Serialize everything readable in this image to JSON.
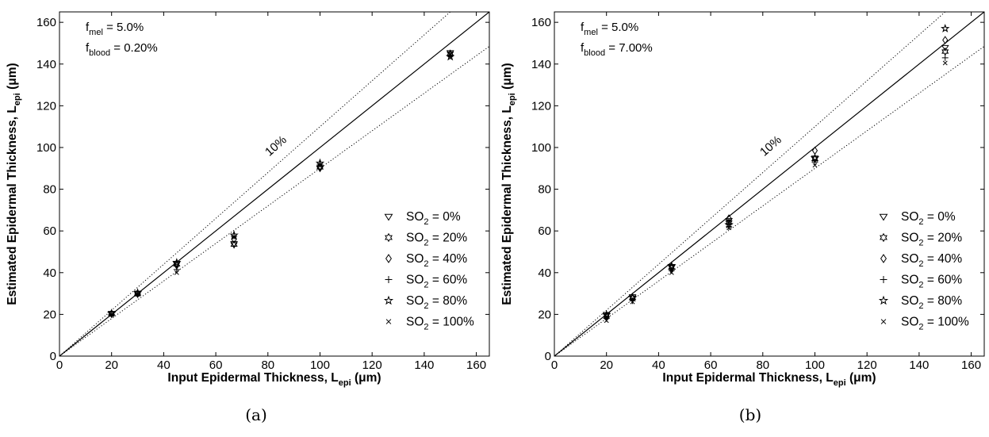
{
  "chart_data": [
    {
      "type": "scatter",
      "panel_label": "(a)",
      "xlabel": {
        "main": "Input Epidermal Thickness, L",
        "sub": "epi",
        "post": " (μm)"
      },
      "ylabel": {
        "main": "Estimated Epidermal Thickness, L",
        "sub": "epi",
        "post": " (μm)"
      },
      "xlim": [
        0,
        165
      ],
      "ylim": [
        0,
        165
      ],
      "xticks": [
        0,
        20,
        40,
        60,
        80,
        100,
        120,
        140,
        160
      ],
      "yticks": [
        0,
        20,
        40,
        60,
        80,
        100,
        120,
        140,
        160
      ],
      "grid": false,
      "legend_position": "lower-right",
      "params": [
        {
          "main": "f",
          "sub": "mel",
          "post": " = 5.0%"
        },
        {
          "main": "f",
          "sub": "blood",
          "post": " = 0.20%"
        }
      ],
      "reference_line": {
        "label": "10%",
        "tolerance": 0.1
      },
      "series": [
        {
          "name": "SO2 = 0%",
          "marker": "triangle-down-icon",
          "x": [
            20,
            30,
            45,
            67,
            100,
            150
          ],
          "y": [
            20.5,
            30.2,
            44.5,
            54,
            90,
            145.5
          ]
        },
        {
          "name": "SO2 = 20%",
          "marker": "hexagram-icon",
          "x": [
            20,
            30,
            45,
            67,
            100,
            150
          ],
          "y": [
            20.3,
            30,
            44,
            53.5,
            90.5,
            145
          ]
        },
        {
          "name": "SO2 = 40%",
          "marker": "diamond-icon",
          "x": [
            20,
            30,
            45,
            67,
            100,
            150
          ],
          "y": [
            20.2,
            29.8,
            43.5,
            56,
            91,
            144.5
          ]
        },
        {
          "name": "SO2 = 60%",
          "marker": "plus-icon",
          "x": [
            20,
            30,
            45,
            67,
            100,
            150
          ],
          "y": [
            20,
            30,
            41.5,
            57.5,
            92,
            144
          ]
        },
        {
          "name": "SO2 = 80%",
          "marker": "pentagram-icon",
          "x": [
            20,
            30,
            45,
            67,
            100,
            150
          ],
          "y": [
            20.5,
            30.3,
            44.8,
            58,
            92.5,
            143.5
          ]
        },
        {
          "name": "SO2 = 100%",
          "marker": "cross-icon",
          "x": [
            20,
            30,
            45,
            67,
            100,
            150
          ],
          "y": [
            20,
            29.7,
            40,
            57,
            91.5,
            144.5
          ]
        }
      ]
    },
    {
      "type": "scatter",
      "panel_label": "(b)",
      "xlabel": {
        "main": "Input Epidermal Thickness, L",
        "sub": "epi",
        "post": " (μm)"
      },
      "ylabel": {
        "main": "Estimated Epidermal Thickness, L",
        "sub": "epi",
        "post": " (μm)"
      },
      "xlim": [
        0,
        165
      ],
      "ylim": [
        0,
        165
      ],
      "xticks": [
        0,
        20,
        40,
        60,
        80,
        100,
        120,
        140,
        160
      ],
      "yticks": [
        0,
        20,
        40,
        60,
        80,
        100,
        120,
        140,
        160
      ],
      "grid": false,
      "legend_position": "lower-right",
      "params": [
        {
          "main": "f",
          "sub": "mel",
          "post": " = 5.0%"
        },
        {
          "main": "f",
          "sub": "blood",
          "post": " = 7.00%"
        }
      ],
      "reference_line": {
        "label": "10%",
        "tolerance": 0.1
      },
      "series": [
        {
          "name": "SO2 = 0%",
          "marker": "triangle-down-icon",
          "x": [
            20,
            30,
            45,
            67,
            100,
            150
          ],
          "y": [
            20,
            28.5,
            43,
            65,
            95,
            148
          ]
        },
        {
          "name": "SO2 = 20%",
          "marker": "hexagram-icon",
          "x": [
            20,
            30,
            45,
            67,
            100,
            150
          ],
          "y": [
            19.5,
            28,
            42.5,
            64,
            94.5,
            146
          ]
        },
        {
          "name": "SO2 = 40%",
          "marker": "diamond-icon",
          "x": [
            20,
            30,
            45,
            67,
            100,
            150
          ],
          "y": [
            19,
            27.5,
            42,
            66,
            98.5,
            151.5
          ]
        },
        {
          "name": "SO2 = 60%",
          "marker": "plus-icon",
          "x": [
            20,
            30,
            45,
            67,
            100,
            150
          ],
          "y": [
            18,
            26.5,
            41,
            62,
            93,
            143
          ]
        },
        {
          "name": "SO2 = 80%",
          "marker": "pentagram-icon",
          "x": [
            20,
            30,
            45,
            67,
            100,
            150
          ],
          "y": [
            19.8,
            28.2,
            43.2,
            63,
            95,
            157
          ]
        },
        {
          "name": "SO2 = 100%",
          "marker": "cross-icon",
          "x": [
            20,
            30,
            45,
            67,
            100,
            150
          ],
          "y": [
            17,
            26,
            40,
            61.5,
            91.5,
            140.5
          ]
        }
      ]
    }
  ]
}
